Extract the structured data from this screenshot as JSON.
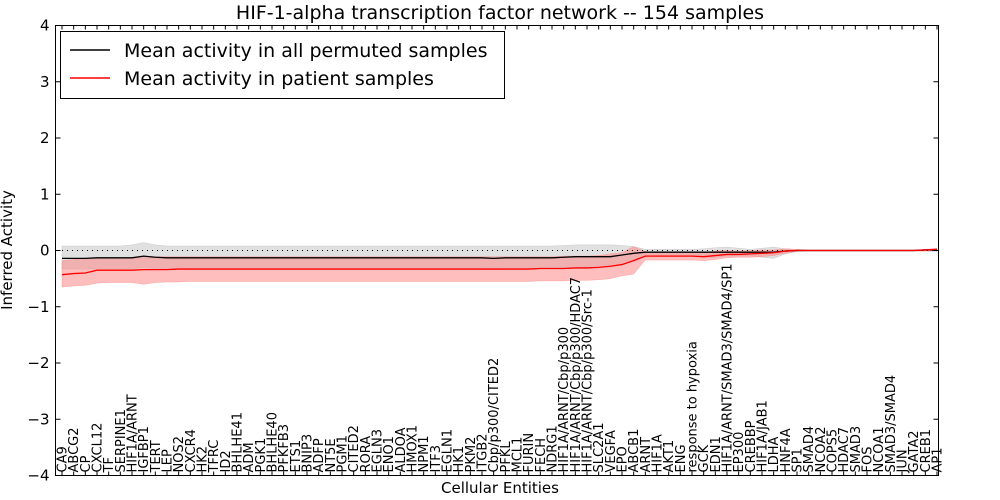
{
  "chart_data": {
    "type": "line",
    "title": "HIF-1-alpha transcription factor network -- 154 samples",
    "xlabel": "Cellular Entities",
    "ylabel": "Inferred Activity",
    "ylim": [
      -4,
      4
    ],
    "yticks": [
      -4,
      -3,
      -2,
      -1,
      0,
      1,
      2,
      3,
      4
    ],
    "grid": false,
    "legend_position": "top-left",
    "reference_line": 0,
    "categories": [
      "CA9",
      "ABCG2",
      "CP",
      "CXCL12",
      "TF",
      "SERPINE1",
      "HIF1A/ARNT",
      "IGFBP1",
      "TERT",
      "LEP",
      "NOS2",
      "CXCR4",
      "HK2",
      "TFRC",
      "ID2",
      "BHLHE41",
      "ADM",
      "PGK1",
      "BHLHE40",
      "PFKFB3",
      "ETS1",
      "BNIP3",
      "ADFP",
      "NT5E",
      "PGM1",
      "CITED2",
      "RORA",
      "EGLN3",
      "ENO1",
      "ALDOA",
      "HMOX1",
      "NPM1",
      "ITF3",
      "EGLN1",
      "HK1",
      "PKM2",
      "ITGB2",
      "Cbp/p300/CITED2",
      "PFKL",
      "MCL1",
      "FURIN",
      "FECH",
      "NDRG1",
      "HIF1A/ARNT/Cbp/p300",
      "HIF1A/ARNT/Cbp/p300/HDAC7",
      "HIF1A/ARNT/Cbp/p300/Src-1",
      "SLC2A1",
      "VEGFA",
      "EPO",
      "ABCB1",
      "ARNT",
      "HIF1A",
      "AKT1",
      "ENG",
      "response to hypoxia",
      "GCK",
      "EDN1",
      "HIF1A/ARNT/SMAD3/SMAD4/SP1",
      "EP300",
      "CREBBP",
      "HIF1A/JAB1",
      "LDHA",
      "HNF4A",
      "SP1",
      "SMAD4",
      "NCOA2",
      "COPS5",
      "HDAC7",
      "SMAD3",
      "FOS",
      "NCOA1",
      "SMAD3/SMAD4",
      "JUN",
      "GATA2",
      "CREB1",
      "AP1"
    ],
    "series": [
      {
        "name": "Mean activity in all permuted samples",
        "color": "#000000",
        "band_color": "#bbbbbb",
        "values": [
          -0.14,
          -0.14,
          -0.14,
          -0.13,
          -0.13,
          -0.13,
          -0.13,
          -0.1,
          -0.12,
          -0.13,
          -0.13,
          -0.13,
          -0.13,
          -0.13,
          -0.13,
          -0.13,
          -0.13,
          -0.13,
          -0.13,
          -0.13,
          -0.13,
          -0.13,
          -0.13,
          -0.13,
          -0.13,
          -0.13,
          -0.13,
          -0.13,
          -0.13,
          -0.13,
          -0.13,
          -0.13,
          -0.13,
          -0.13,
          -0.13,
          -0.13,
          -0.13,
          -0.14,
          -0.13,
          -0.13,
          -0.13,
          -0.13,
          -0.13,
          -0.12,
          -0.11,
          -0.11,
          -0.11,
          -0.11,
          -0.08,
          -0.05,
          -0.03,
          -0.03,
          -0.03,
          -0.03,
          -0.03,
          -0.03,
          -0.03,
          -0.03,
          -0.03,
          -0.03,
          -0.03,
          -0.03,
          -0.01,
          0.0,
          0.0,
          0.0,
          0.0,
          0.0,
          0.0,
          0.0,
          0.0,
          0.0,
          0.0,
          0.0,
          0.01,
          0.01
        ],
        "upper": [
          0.08,
          0.08,
          0.08,
          0.08,
          0.08,
          0.08,
          0.1,
          0.14,
          0.1,
          0.08,
          0.08,
          0.08,
          0.08,
          0.08,
          0.08,
          0.08,
          0.08,
          0.08,
          0.08,
          0.08,
          0.08,
          0.08,
          0.08,
          0.08,
          0.08,
          0.08,
          0.08,
          0.08,
          0.08,
          0.08,
          0.08,
          0.08,
          0.08,
          0.08,
          0.08,
          0.08,
          0.08,
          0.08,
          0.08,
          0.08,
          0.08,
          0.08,
          0.08,
          0.09,
          0.1,
          0.1,
          0.1,
          0.1,
          0.09,
          0.07,
          0.02,
          0.02,
          0.02,
          0.02,
          0.02,
          0.03,
          0.05,
          0.06,
          0.04,
          0.02,
          0.04,
          0.06,
          0.03,
          0.02,
          0.01,
          0.01,
          0.01,
          0.01,
          0.01,
          0.01,
          0.01,
          0.01,
          0.01,
          0.01,
          0.02,
          0.03
        ],
        "lower": [
          -0.33,
          -0.33,
          -0.33,
          -0.32,
          -0.32,
          -0.32,
          -0.32,
          -0.3,
          -0.32,
          -0.32,
          -0.32,
          -0.32,
          -0.32,
          -0.32,
          -0.32,
          -0.32,
          -0.32,
          -0.32,
          -0.32,
          -0.32,
          -0.32,
          -0.32,
          -0.32,
          -0.32,
          -0.32,
          -0.32,
          -0.32,
          -0.32,
          -0.32,
          -0.32,
          -0.32,
          -0.32,
          -0.32,
          -0.32,
          -0.32,
          -0.32,
          -0.32,
          -0.34,
          -0.32,
          -0.32,
          -0.32,
          -0.32,
          -0.32,
          -0.31,
          -0.3,
          -0.3,
          -0.3,
          -0.3,
          -0.24,
          -0.18,
          -0.1,
          -0.1,
          -0.1,
          -0.1,
          -0.1,
          -0.12,
          -0.12,
          -0.1,
          -0.1,
          -0.1,
          -0.12,
          -0.14,
          -0.06,
          -0.02,
          -0.01,
          -0.01,
          -0.01,
          -0.01,
          -0.01,
          -0.01,
          -0.01,
          -0.01,
          -0.01,
          -0.01,
          -0.01,
          -0.02
        ]
      },
      {
        "name": "Mean activity in patient samples",
        "color": "#ff0000",
        "band_color": "#ff8888",
        "values": [
          -0.43,
          -0.41,
          -0.4,
          -0.35,
          -0.35,
          -0.35,
          -0.35,
          -0.34,
          -0.34,
          -0.34,
          -0.33,
          -0.33,
          -0.33,
          -0.33,
          -0.33,
          -0.33,
          -0.33,
          -0.33,
          -0.33,
          -0.33,
          -0.33,
          -0.33,
          -0.33,
          -0.33,
          -0.33,
          -0.33,
          -0.33,
          -0.33,
          -0.33,
          -0.33,
          -0.33,
          -0.33,
          -0.33,
          -0.33,
          -0.33,
          -0.33,
          -0.33,
          -0.33,
          -0.33,
          -0.33,
          -0.33,
          -0.32,
          -0.32,
          -0.32,
          -0.31,
          -0.31,
          -0.3,
          -0.28,
          -0.25,
          -0.18,
          -0.1,
          -0.1,
          -0.1,
          -0.1,
          -0.1,
          -0.11,
          -0.09,
          -0.07,
          -0.07,
          -0.06,
          -0.05,
          -0.04,
          -0.01,
          0.0,
          0.0,
          0.0,
          0.0,
          0.0,
          0.0,
          0.0,
          0.0,
          0.0,
          0.0,
          0.0,
          0.01,
          0.02
        ],
        "upper": [
          -0.18,
          -0.16,
          -0.14,
          -0.13,
          -0.13,
          -0.13,
          -0.13,
          -0.1,
          -0.11,
          -0.11,
          -0.11,
          -0.11,
          -0.11,
          -0.11,
          -0.11,
          -0.11,
          -0.11,
          -0.11,
          -0.11,
          -0.11,
          -0.11,
          -0.11,
          -0.11,
          -0.11,
          -0.11,
          -0.11,
          -0.11,
          -0.11,
          -0.11,
          -0.11,
          -0.11,
          -0.11,
          -0.11,
          -0.11,
          -0.11,
          -0.11,
          -0.11,
          -0.11,
          -0.11,
          -0.11,
          -0.11,
          -0.11,
          -0.11,
          -0.1,
          -0.1,
          -0.1,
          -0.09,
          -0.06,
          -0.04,
          0.07,
          -0.02,
          -0.03,
          -0.03,
          -0.03,
          -0.03,
          -0.04,
          -0.01,
          0.0,
          -0.01,
          0.0,
          0.01,
          0.01,
          0.03,
          0.02,
          0.01,
          0.01,
          0.01,
          0.01,
          0.01,
          0.01,
          0.01,
          0.01,
          0.01,
          0.01,
          0.02,
          0.04
        ],
        "lower": [
          -0.65,
          -0.63,
          -0.62,
          -0.58,
          -0.57,
          -0.57,
          -0.57,
          -0.6,
          -0.57,
          -0.56,
          -0.56,
          -0.55,
          -0.55,
          -0.55,
          -0.55,
          -0.55,
          -0.55,
          -0.55,
          -0.55,
          -0.55,
          -0.55,
          -0.55,
          -0.55,
          -0.55,
          -0.55,
          -0.55,
          -0.55,
          -0.55,
          -0.55,
          -0.55,
          -0.55,
          -0.55,
          -0.55,
          -0.55,
          -0.55,
          -0.55,
          -0.55,
          -0.55,
          -0.55,
          -0.55,
          -0.55,
          -0.54,
          -0.54,
          -0.54,
          -0.53,
          -0.53,
          -0.52,
          -0.5,
          -0.45,
          -0.42,
          -0.17,
          -0.17,
          -0.17,
          -0.17,
          -0.17,
          -0.18,
          -0.16,
          -0.13,
          -0.12,
          -0.12,
          -0.11,
          -0.09,
          -0.05,
          -0.01,
          -0.01,
          -0.01,
          -0.01,
          -0.01,
          -0.01,
          -0.01,
          -0.01,
          -0.01,
          -0.01,
          -0.01,
          -0.01,
          0.0
        ]
      }
    ]
  }
}
